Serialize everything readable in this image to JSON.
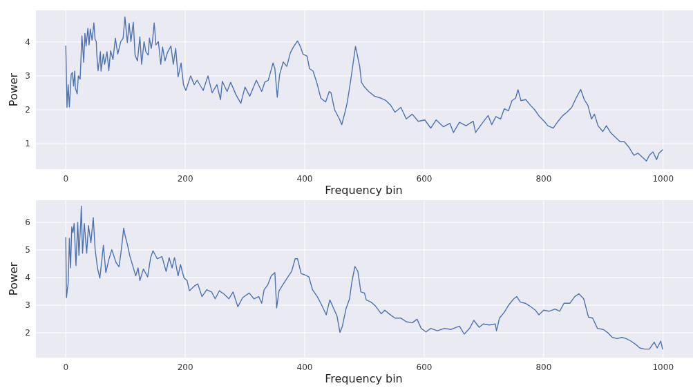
{
  "chart_data": [
    {
      "type": "line",
      "xlabel": "Frequency bin",
      "ylabel": "Power",
      "xlim": [
        -50,
        1050
      ],
      "ylim": [
        0.25,
        4.93
      ],
      "xticks": [
        0,
        200,
        400,
        600,
        800,
        1000
      ],
      "yticks": [
        1,
        2,
        3,
        4
      ],
      "grid": true,
      "x": [
        0,
        2,
        4,
        6,
        9,
        11,
        13,
        15,
        16,
        19,
        21,
        24,
        27,
        30,
        32,
        34,
        37,
        39,
        41,
        44,
        47,
        49,
        51,
        52,
        54,
        58,
        59,
        63,
        65,
        69,
        72,
        75,
        79,
        83,
        87,
        92,
        96,
        99,
        103,
        106,
        109,
        113,
        116,
        120,
        124,
        127,
        131,
        134,
        138,
        140,
        143,
        145,
        148,
        151,
        155,
        159,
        162,
        166,
        170,
        176,
        180,
        184,
        188,
        193,
        197,
        201,
        209,
        215,
        220,
        230,
        238,
        245,
        253,
        259,
        262,
        270,
        276,
        285,
        293,
        300,
        308,
        319,
        328,
        333,
        339,
        347,
        350,
        354,
        358,
        364,
        370,
        376,
        381,
        388,
        393,
        397,
        404,
        408,
        414,
        420,
        427,
        435,
        441,
        444,
        450,
        458,
        462,
        468,
        471,
        477,
        485,
        492,
        495,
        500,
        507,
        517,
        528,
        536,
        544,
        551,
        561,
        570,
        580,
        590,
        601,
        611,
        620,
        632,
        643,
        649,
        659,
        670,
        682,
        686,
        697,
        707,
        713,
        720,
        728,
        734,
        741,
        747,
        753,
        757,
        762,
        770,
        778,
        785,
        793,
        801,
        807,
        816,
        824,
        832,
        839,
        847,
        855,
        862,
        868,
        874,
        880,
        885,
        891,
        899,
        905,
        912,
        920,
        928,
        935,
        943,
        951,
        958,
        966,
        972,
        977,
        983,
        989,
        993,
        999
      ],
      "series": [
        {
          "color": "#4c72b0",
          "values": [
            3.88,
            2.07,
            2.74,
            2.08,
            3.04,
            3.1,
            2.7,
            3.14,
            2.64,
            2.47,
            3.0,
            2.9,
            4.18,
            3.4,
            4.25,
            3.88,
            4.4,
            3.91,
            4.38,
            4.05,
            4.56,
            4.08,
            4.01,
            3.61,
            3.15,
            3.71,
            3.14,
            3.64,
            3.34,
            3.71,
            3.15,
            3.74,
            3.48,
            4.11,
            3.64,
            4.01,
            4.11,
            4.74,
            3.98,
            4.55,
            4.01,
            4.58,
            3.61,
            3.44,
            4.15,
            3.34,
            4.01,
            3.71,
            3.61,
            4.11,
            3.81,
            4.01,
            4.56,
            3.91,
            4.01,
            3.34,
            3.85,
            3.44,
            3.68,
            3.88,
            3.34,
            3.81,
            2.97,
            3.38,
            2.74,
            2.57,
            3.0,
            2.74,
            2.87,
            2.57,
            3.0,
            2.5,
            2.74,
            2.3,
            2.84,
            2.54,
            2.81,
            2.44,
            2.19,
            2.67,
            2.4,
            2.87,
            2.54,
            2.81,
            2.87,
            3.38,
            3.21,
            2.37,
            3.04,
            3.41,
            3.28,
            3.68,
            3.85,
            4.03,
            3.85,
            3.64,
            3.58,
            3.21,
            3.14,
            2.81,
            2.34,
            2.23,
            2.54,
            2.5,
            2.0,
            1.73,
            1.56,
            1.97,
            2.2,
            2.87,
            3.87,
            3.28,
            2.81,
            2.67,
            2.54,
            2.4,
            2.34,
            2.27,
            2.13,
            1.93,
            2.07,
            1.73,
            1.87,
            1.66,
            1.7,
            1.46,
            1.7,
            1.5,
            1.6,
            1.33,
            1.63,
            1.53,
            1.66,
            1.33,
            1.6,
            1.83,
            1.56,
            1.8,
            1.73,
            2.03,
            1.97,
            2.27,
            2.34,
            2.59,
            2.27,
            2.3,
            2.13,
            2.0,
            1.8,
            1.66,
            1.53,
            1.46,
            1.66,
            1.83,
            1.93,
            2.07,
            2.37,
            2.6,
            2.3,
            2.13,
            1.73,
            1.87,
            1.53,
            1.36,
            1.53,
            1.33,
            1.19,
            1.06,
            1.06,
            0.89,
            0.66,
            0.72,
            0.59,
            0.49,
            0.66,
            0.76,
            0.53,
            0.72,
            0.82
          ]
        }
      ]
    },
    {
      "type": "line",
      "xlabel": "Frequency bin",
      "ylabel": "Power",
      "xlim": [
        -50,
        1050
      ],
      "ylim": [
        1.1,
        6.8
      ],
      "xticks": [
        0,
        200,
        400,
        600,
        800,
        1000
      ],
      "yticks": [
        2,
        3,
        4,
        5,
        6
      ],
      "grid": true,
      "x": [
        0,
        1,
        4,
        6,
        8,
        10,
        12,
        14,
        17,
        20,
        22,
        25,
        26,
        28,
        31,
        35,
        38,
        42,
        46,
        49,
        53,
        57,
        63,
        67,
        72,
        77,
        84,
        89,
        92,
        97,
        99,
        103,
        107,
        111,
        117,
        121,
        124,
        130,
        137,
        142,
        146,
        153,
        161,
        168,
        173,
        178,
        182,
        188,
        192,
        198,
        203,
        207,
        215,
        221,
        228,
        236,
        244,
        250,
        257,
        265,
        273,
        280,
        288,
        296,
        307,
        315,
        323,
        328,
        332,
        338,
        344,
        350,
        353,
        357,
        363,
        369,
        378,
        384,
        388,
        394,
        400,
        407,
        413,
        421,
        428,
        436,
        442,
        448,
        454,
        459,
        463,
        469,
        475,
        479,
        484,
        489,
        494,
        500,
        503,
        511,
        518,
        528,
        534,
        541,
        551,
        561,
        570,
        580,
        588,
        595,
        603,
        611,
        622,
        634,
        645,
        659,
        667,
        676,
        683,
        692,
        699,
        709,
        719,
        721,
        726,
        734,
        742,
        750,
        755,
        761,
        769,
        776,
        786,
        792,
        800,
        809,
        819,
        827,
        834,
        844,
        852,
        859,
        867,
        875,
        882,
        890,
        900,
        908,
        915,
        923,
        931,
        938,
        946,
        954,
        961,
        969,
        977,
        985,
        990,
        996,
        999
      ],
      "series": [
        {
          "color": "#4c72b0",
          "values": [
            5.45,
            3.27,
            3.81,
            5.42,
            4.35,
            5.83,
            5.63,
            5.96,
            4.43,
            6.0,
            4.8,
            6.0,
            6.58,
            4.88,
            5.96,
            4.88,
            5.88,
            5.26,
            6.17,
            5.05,
            4.35,
            3.98,
            5.17,
            4.18,
            4.64,
            5.01,
            4.55,
            4.39,
            4.84,
            5.79,
            5.55,
            5.21,
            4.8,
            4.51,
            4.06,
            4.35,
            3.89,
            4.31,
            4.02,
            4.72,
            4.97,
            4.68,
            4.76,
            4.22,
            4.72,
            4.35,
            4.72,
            4.06,
            4.47,
            3.98,
            3.89,
            3.52,
            3.69,
            3.77,
            3.31,
            3.56,
            3.48,
            3.23,
            3.52,
            3.4,
            3.23,
            3.48,
            2.94,
            3.27,
            3.44,
            3.23,
            3.31,
            3.07,
            3.56,
            3.73,
            4.06,
            4.18,
            2.9,
            3.52,
            3.73,
            3.93,
            4.22,
            4.68,
            4.68,
            4.14,
            4.1,
            4.02,
            3.56,
            3.31,
            3.02,
            2.65,
            3.19,
            2.9,
            2.61,
            2.01,
            2.24,
            2.86,
            3.23,
            3.85,
            4.4,
            4.22,
            3.48,
            3.44,
            3.19,
            3.11,
            2.98,
            2.69,
            2.82,
            2.69,
            2.53,
            2.53,
            2.4,
            2.36,
            2.49,
            2.16,
            2.03,
            2.16,
            2.07,
            2.16,
            2.12,
            2.24,
            1.95,
            2.16,
            2.45,
            2.2,
            2.32,
            2.28,
            2.32,
            2.07,
            2.53,
            2.74,
            3.02,
            3.23,
            3.31,
            3.11,
            3.07,
            2.98,
            2.82,
            2.65,
            2.82,
            2.78,
            2.86,
            2.78,
            3.07,
            3.07,
            3.31,
            3.41,
            3.23,
            2.57,
            2.53,
            2.16,
            2.12,
            1.99,
            1.83,
            1.79,
            1.83,
            1.79,
            1.7,
            1.58,
            1.45,
            1.41,
            1.41,
            1.66,
            1.45,
            1.7,
            1.41
          ]
        }
      ]
    }
  ]
}
